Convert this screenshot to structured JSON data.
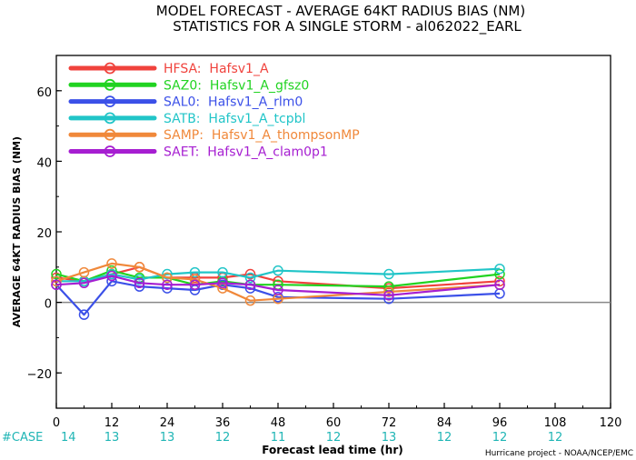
{
  "title_line1": "MODEL FORECAST - AVERAGE 64KT RADIUS BIAS (NM)",
  "title_line2": "STATISTICS FOR A SINGLE STORM - al062022_EARL",
  "case_label": "#CASE",
  "credit": "Hurricane project - NOAA/NCEP/EMC",
  "chart_data": {
    "type": "line",
    "title": "MODEL FORECAST - AVERAGE 64KT RADIUS BIAS (NM)",
    "subtitle": "STATISTICS FOR A SINGLE STORM - al062022_EARL",
    "xlabel": "Forecast lead time (hr)",
    "ylabel": "AVERAGE 64KT RADIUS BIAS (NM)",
    "xlim": [
      0,
      120
    ],
    "ylim": [
      -30,
      70
    ],
    "xticks": [
      0,
      12,
      24,
      36,
      48,
      60,
      72,
      84,
      96,
      108,
      120
    ],
    "yticks": [
      -20,
      0,
      20,
      40,
      60
    ],
    "grid": false,
    "legend_position": "top-left",
    "case_counts": [
      {
        "x": 0,
        "n": "14"
      },
      {
        "x": 12,
        "n": "13"
      },
      {
        "x": 24,
        "n": "13"
      },
      {
        "x": 36,
        "n": "12"
      },
      {
        "x": 48,
        "n": "11"
      },
      {
        "x": 60,
        "n": "12"
      },
      {
        "x": 72,
        "n": "13"
      },
      {
        "x": 84,
        "n": "12"
      },
      {
        "x": 96,
        "n": "12"
      },
      {
        "x": 108,
        "n": "12"
      }
    ],
    "series": [
      {
        "name": "HFSA:  Hafsv1_A",
        "color": "#f0423c",
        "points": [
          [
            0,
            7
          ],
          [
            6,
            6
          ],
          [
            12,
            8
          ],
          [
            18,
            10
          ],
          [
            24,
            7
          ],
          [
            30,
            7
          ],
          [
            36,
            7
          ],
          [
            42,
            8
          ],
          [
            48,
            6
          ],
          [
            72,
            4
          ],
          [
            96,
            6
          ]
        ]
      },
      {
        "name": "SAZ0:  Hafsv1_A_gfsz0",
        "color": "#21d321",
        "points": [
          [
            0,
            8
          ],
          [
            6,
            6
          ],
          [
            12,
            9
          ],
          [
            18,
            7
          ],
          [
            24,
            7
          ],
          [
            30,
            5
          ],
          [
            36,
            6
          ],
          [
            42,
            5
          ],
          [
            48,
            5
          ],
          [
            72,
            4.5
          ],
          [
            96,
            8
          ]
        ]
      },
      {
        "name": "SAL0:  Hafsv1_A_rlm0",
        "color": "#3b50e8",
        "points": [
          [
            0,
            5
          ],
          [
            6,
            -3.5
          ],
          [
            12,
            6
          ],
          [
            18,
            4.5
          ],
          [
            24,
            4
          ],
          [
            30,
            3.5
          ],
          [
            36,
            5
          ],
          [
            42,
            4
          ],
          [
            48,
            1.5
          ],
          [
            72,
            1
          ],
          [
            96,
            2.5
          ]
        ]
      },
      {
        "name": "SATB:  Hafsv1_A_tcpbl",
        "color": "#21c5c8",
        "points": [
          [
            0,
            6
          ],
          [
            6,
            6
          ],
          [
            12,
            8
          ],
          [
            18,
            6.5
          ],
          [
            24,
            8
          ],
          [
            30,
            8.5
          ],
          [
            36,
            8.5
          ],
          [
            42,
            7
          ],
          [
            48,
            9
          ],
          [
            72,
            8
          ],
          [
            96,
            9.5
          ]
        ]
      },
      {
        "name": "SAMP:  Hafsv1_A_thompsonMP",
        "color": "#f0883a",
        "points": [
          [
            0,
            6
          ],
          [
            6,
            8.5
          ],
          [
            12,
            11
          ],
          [
            18,
            10
          ],
          [
            24,
            7
          ],
          [
            30,
            6.5
          ],
          [
            36,
            4
          ],
          [
            42,
            0.5
          ],
          [
            48,
            1
          ],
          [
            72,
            3
          ],
          [
            96,
            5
          ]
        ]
      },
      {
        "name": "SAET:  Hafsv1_A_clam0p1",
        "color": "#a61ed1",
        "points": [
          [
            0,
            5
          ],
          [
            6,
            5.5
          ],
          [
            12,
            7.5
          ],
          [
            18,
            5.5
          ],
          [
            24,
            5
          ],
          [
            30,
            5
          ],
          [
            36,
            5.5
          ],
          [
            42,
            5
          ],
          [
            48,
            3.5
          ],
          [
            72,
            2
          ],
          [
            96,
            5
          ]
        ]
      }
    ]
  }
}
